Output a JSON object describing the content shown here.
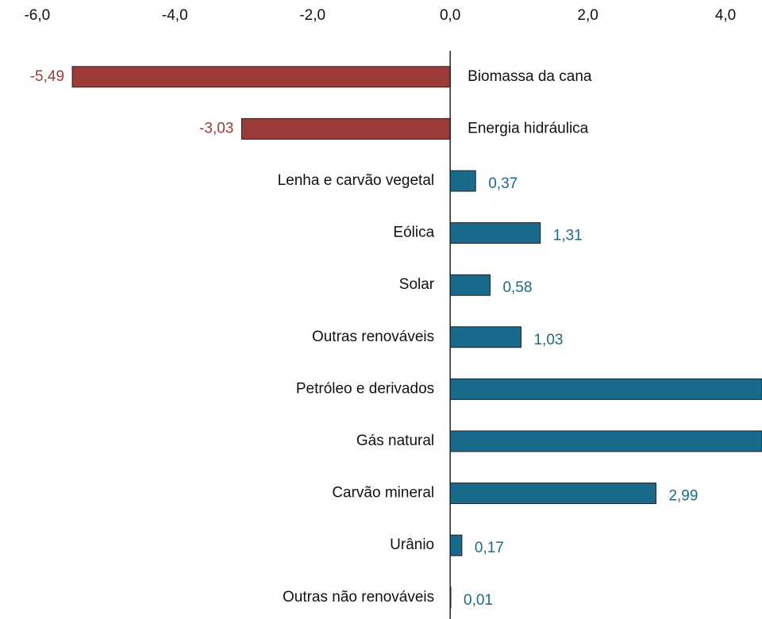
{
  "chart_data": {
    "type": "bar",
    "orientation": "horizontal",
    "categories": [
      "Biomassa da cana",
      "Energia hidráulica",
      "Lenha e carvão vegetal",
      "Eólica",
      "Solar",
      "Outras renováveis",
      "Petróleo e derivados",
      "Gás natural",
      "Carvão mineral",
      "Urânio",
      "Outras não renováveis"
    ],
    "values": [
      -5.49,
      -3.03,
      0.37,
      1.31,
      0.58,
      1.03,
      4.7,
      4.7,
      2.99,
      0.17,
      0.01
    ],
    "value_labels": [
      "-5,49",
      "-3,03",
      "0,37",
      "1,31",
      "0,58",
      "1,03",
      null,
      null,
      "2,99",
      "0,17",
      "0,01"
    ],
    "color_negative": "#9c3a37",
    "color_positive": "#1a6a8c",
    "xlim": [
      -6.54,
      4.53
    ],
    "xticks": [
      {
        "value": -6,
        "label": "-6,0"
      },
      {
        "value": -4,
        "label": "-4,0"
      },
      {
        "value": -2,
        "label": "-2,0"
      },
      {
        "value": 0,
        "label": "0,0"
      },
      {
        "value": 2,
        "label": "2,0"
      },
      {
        "value": 4,
        "label": "4,0"
      }
    ]
  }
}
